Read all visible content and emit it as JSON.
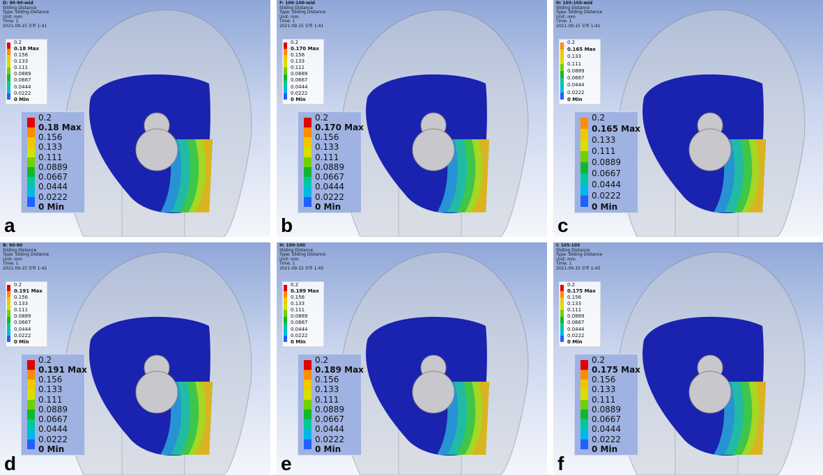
{
  "panels": [
    {
      "letter": "a",
      "header": [
        "D: 90-90-mid",
        "Sliding Distance",
        "Type: Sliding Distance",
        "Unit: mm",
        "Time: 1",
        "2021-09-15 오후 1:41"
      ],
      "legend": [
        "0.2",
        "0.18 Max",
        "0.156",
        "0.133",
        "0.111",
        "0.0889",
        "0.0667",
        "0.0444",
        "0.0222",
        "0 Min"
      ]
    },
    {
      "letter": "b",
      "header": [
        "F: 100-100-mid",
        "Sliding Distance",
        "Type: Sliding Distance",
        "Unit: mm",
        "Time: 1",
        "2021-09-15 오후 1:41"
      ],
      "legend": [
        "0.2",
        "0.170 Max",
        "0.156",
        "0.133",
        "0.111",
        "0.0889",
        "0.0667",
        "0.0444",
        "0.0222",
        "0 Min"
      ]
    },
    {
      "letter": "c",
      "header": [
        "H: 105-105-mid",
        "Sliding Distance",
        "Type: Sliding Distance",
        "Unit: mm",
        "Time: 1",
        "2021-09-15 오후 1:41"
      ],
      "legend": [
        "0.2",
        "0.165 Max",
        "0.133",
        "0.111",
        "0.0889",
        "0.0667",
        "0.0444",
        "0.0222",
        "0 Min"
      ]
    },
    {
      "letter": "d",
      "header": [
        "B: 90-90",
        "Sliding Distance",
        "Type: Sliding Distance",
        "Unit: mm",
        "Time: 1",
        "2021-09-15 오후 1:42"
      ],
      "legend": [
        "0.2",
        "0.191 Max",
        "0.156",
        "0.133",
        "0.111",
        "0.0889",
        "0.0667",
        "0.0444",
        "0.0222",
        "0 Min"
      ]
    },
    {
      "letter": "e",
      "header": [
        "H: 100-100",
        "Sliding Distance",
        "Type: Sliding Distance",
        "Unit: mm",
        "Time: 1",
        "2021-09-15 오후 1:43"
      ],
      "legend": [
        "0.2",
        "0.189 Max",
        "0.156",
        "0.133",
        "0.111",
        "0.0889",
        "0.0667",
        "0.0444",
        "0.0222",
        "0 Min"
      ]
    },
    {
      "letter": "f",
      "header": [
        "I: 105-105",
        "Sliding Distance",
        "Type: Sliding Distance",
        "Unit: mm",
        "Time: 1",
        "2021-09-15 오후 1:43"
      ],
      "legend": [
        "0.2",
        "0.175 Max",
        "0.156",
        "0.133",
        "0.111",
        "0.0889",
        "0.0667",
        "0.0444",
        "0.0222",
        "0 Min"
      ]
    }
  ]
}
